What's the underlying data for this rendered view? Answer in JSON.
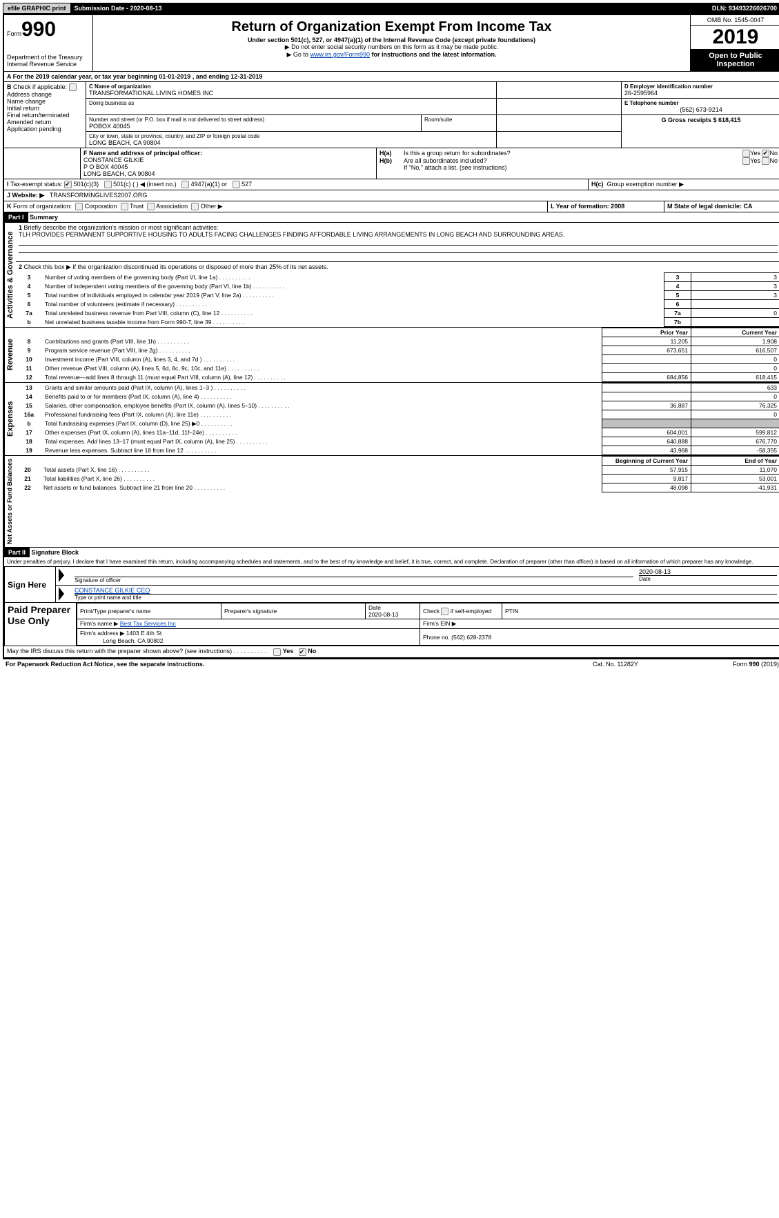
{
  "header": {
    "efile": "efile GRAPHIC print",
    "submission_date_label": "Submission Date - 2020-08-13",
    "dln": "DLN: 93493226026700"
  },
  "title_block": {
    "form_prefix": "Form",
    "form_number": "990",
    "dept1": "Department of the Treasury",
    "dept2": "Internal Revenue Service",
    "main_title": "Return of Organization Exempt From Income Tax",
    "subtitle": "Under section 501(c), 527, or 4947(a)(1) of the Internal Revenue Code (except private foundations)",
    "note1": "▶ Do not enter social security numbers on this form as it may be made public.",
    "note2_a": "▶ Go to ",
    "note2_link": "www.irs.gov/Form990",
    "note2_b": " for instructions and the latest information.",
    "omb": "OMB No. 1545-0047",
    "year": "2019",
    "open_public": "Open to Public Inspection"
  },
  "section_a": {
    "calendar_line": "For the 2019 calendar year, or tax year beginning 01-01-2019",
    "ending": ", and ending 12-31-2019",
    "b_label": "Check if applicable:",
    "b_opts": [
      "Address change",
      "Name change",
      "Initial return",
      "Final return/terminated",
      "Amended return",
      "Application pending"
    ],
    "c_label": "C Name of organization",
    "org_name": "TRANSFORMATIONAL LIVING HOMES INC",
    "dba_label": "Doing business as",
    "addr_label": "Number and street (or P.O. box if mail is not delivered to street address)",
    "addr": "POBOX 40045",
    "room_label": "Room/suite",
    "city_label": "City or town, state or province, country, and ZIP or foreign postal code",
    "city": "LONG BEACH, CA  90804",
    "d_label": "D Employer identification number",
    "ein": "26-2595964",
    "e_label": "E Telephone number",
    "phone": "(562) 673-9214",
    "g_label": "G Gross receipts $ 618,415",
    "f_label": "F  Name and address of principal officer:",
    "officer_name": "CONSTANCE GILKIE",
    "officer_addr1": "P O BOX 40045",
    "officer_addr2": "LONG BEACH, CA  90804",
    "ha_label": "Is this a group return for subordinates?",
    "hb_label": "Are all subordinates included?",
    "hb_note": "If \"No,\" attach a list. (see instructions)",
    "hc_label": "Group exemption number ▶",
    "yes": "Yes",
    "no": "No",
    "tax_exempt_label": "Tax-exempt status:",
    "te_501c3": "501(c)(3)",
    "te_501c": "501(c) (   ) ◀ (insert no.)",
    "te_4947": "4947(a)(1) or",
    "te_527": "527",
    "website_label": "Website: ▶",
    "website": "TRANSFORMINGLIVES2007.ORG",
    "k_label": "Form of organization:",
    "k_opts": [
      "Corporation",
      "Trust",
      "Association",
      "Other ▶"
    ],
    "l_label": "L Year of formation: 2008",
    "m_label": "M State of legal domicile: CA"
  },
  "part1": {
    "header": "Part I",
    "title": "Summary",
    "q1_label": "Briefly describe the organization's mission or most significant activities:",
    "q1_text": "TLH PROVIDES PERMANENT SUPPORTIVE HOUSING TO ADULTS FACING CHALLENGES FINDING AFFORDABLE LIVING ARRANGEMENTS IN LONG BEACH AND SURROUNDING AREAS.",
    "q2_label": "Check this box ▶     if the organization discontinued its operations or disposed of more than 25% of its net assets.",
    "activities_label": "Activities & Governance",
    "revenue_label": "Revenue",
    "expenses_label": "Expenses",
    "netassets_label": "Net Assets or Fund Balances",
    "rows_ag": [
      {
        "n": "3",
        "label": "Number of voting members of the governing body (Part VI, line 1a)",
        "box": "3",
        "val": "3"
      },
      {
        "n": "4",
        "label": "Number of independent voting members of the governing body (Part VI, line 1b)",
        "box": "4",
        "val": "3"
      },
      {
        "n": "5",
        "label": "Total number of individuals employed in calendar year 2019 (Part V, line 2a)",
        "box": "5",
        "val": "3"
      },
      {
        "n": "6",
        "label": "Total number of volunteers (estimate if necessary)",
        "box": "6",
        "val": ""
      },
      {
        "n": "7a",
        "label": "Total unrelated business revenue from Part VIII, column (C), line 12",
        "box": "7a",
        "val": "0"
      },
      {
        "n": "b",
        "label": "Net unrelated business taxable income from Form 990-T, line 39",
        "box": "7b",
        "val": ""
      }
    ],
    "prior_year": "Prior Year",
    "current_year": "Current Year",
    "rows_rev": [
      {
        "n": "8",
        "label": "Contributions and grants (Part VIII, line 1h)",
        "py": "11,205",
        "cy": "1,908"
      },
      {
        "n": "9",
        "label": "Program service revenue (Part VIII, line 2g)",
        "py": "673,651",
        "cy": "616,507"
      },
      {
        "n": "10",
        "label": "Investment income (Part VIII, column (A), lines 3, 4, and 7d )",
        "py": "",
        "cy": "0"
      },
      {
        "n": "11",
        "label": "Other revenue (Part VIII, column (A), lines 5, 6d, 8c, 9c, 10c, and 11e)",
        "py": "",
        "cy": "0"
      },
      {
        "n": "12",
        "label": "Total revenue—add lines 8 through 11 (must equal Part VIII, column (A), line 12)",
        "py": "684,856",
        "cy": "618,415"
      }
    ],
    "rows_exp": [
      {
        "n": "13",
        "label": "Grants and similar amounts paid (Part IX, column (A), lines 1–3 )",
        "py": "",
        "cy": "633"
      },
      {
        "n": "14",
        "label": "Benefits paid to or for members (Part IX, column (A), line 4)",
        "py": "",
        "cy": "0"
      },
      {
        "n": "15",
        "label": "Salaries, other compensation, employee benefits (Part IX, column (A), lines 5–10)",
        "py": "36,887",
        "cy": "76,325"
      },
      {
        "n": "16a",
        "label": "Professional fundraising fees (Part IX, column (A), line 11e)",
        "py": "",
        "cy": "0"
      },
      {
        "n": "b",
        "label": "Total fundraising expenses (Part IX, column (D), line 25) ▶0",
        "py": "shaded",
        "cy": "shaded"
      },
      {
        "n": "17",
        "label": "Other expenses (Part IX, column (A), lines 11a–11d, 11f–24e)",
        "py": "604,001",
        "cy": "599,812"
      },
      {
        "n": "18",
        "label": "Total expenses. Add lines 13–17 (must equal Part IX, column (A), line 25)",
        "py": "640,888",
        "cy": "676,770"
      },
      {
        "n": "19",
        "label": "Revenue less expenses. Subtract line 18 from line 12",
        "py": "43,968",
        "cy": "-58,355"
      }
    ],
    "boy": "Beginning of Current Year",
    "eoy": "End of Year",
    "rows_na": [
      {
        "n": "20",
        "label": "Total assets (Part X, line 16)",
        "py": "57,915",
        "cy": "11,070"
      },
      {
        "n": "21",
        "label": "Total liabilities (Part X, line 26)",
        "py": "9,817",
        "cy": "53,001"
      },
      {
        "n": "22",
        "label": "Net assets or fund balances. Subtract line 21 from line 20",
        "py": "48,098",
        "cy": "-41,931"
      }
    ]
  },
  "part2": {
    "header": "Part II",
    "title": "Signature Block",
    "penalty": "Under penalties of perjury, I declare that I have examined this return, including accompanying schedules and statements, and to the best of my knowledge and belief, it is true, correct, and complete. Declaration of preparer (other than officer) is based on all information of which preparer has any knowledge.",
    "sign_here": "Sign Here",
    "sig_officer": "Signature of officer",
    "sig_date": "2020-08-13",
    "date_label": "Date",
    "officer_name_title": "CONSTANCE GILKIE  CEO",
    "type_name": "Type or print name and title",
    "paid_preparer": "Paid Preparer Use Only",
    "prep_name_label": "Print/Type preparer's name",
    "prep_sig_label": "Preparer's signature",
    "prep_date": "Date\n2020-08-13",
    "check_if": "Check     if self-employed",
    "ptin_label": "PTIN",
    "firm_name_label": "Firm's name   ▶",
    "firm_name": "Best Tax Services Inc",
    "firm_ein_label": "Firm's EIN ▶",
    "firm_addr_label": "Firm's address ▶",
    "firm_addr1": "1403 E 4th St",
    "firm_addr2": "Long Beach, CA  90802",
    "firm_phone_label": "Phone no. (562) 628-2378",
    "discuss": "May the IRS discuss this return with the preparer shown above? (see instructions)"
  },
  "footer": {
    "paperwork": "For Paperwork Reduction Act Notice, see the separate instructions.",
    "catno": "Cat. No. 11282Y",
    "formref": "Form 990 (2019)"
  }
}
